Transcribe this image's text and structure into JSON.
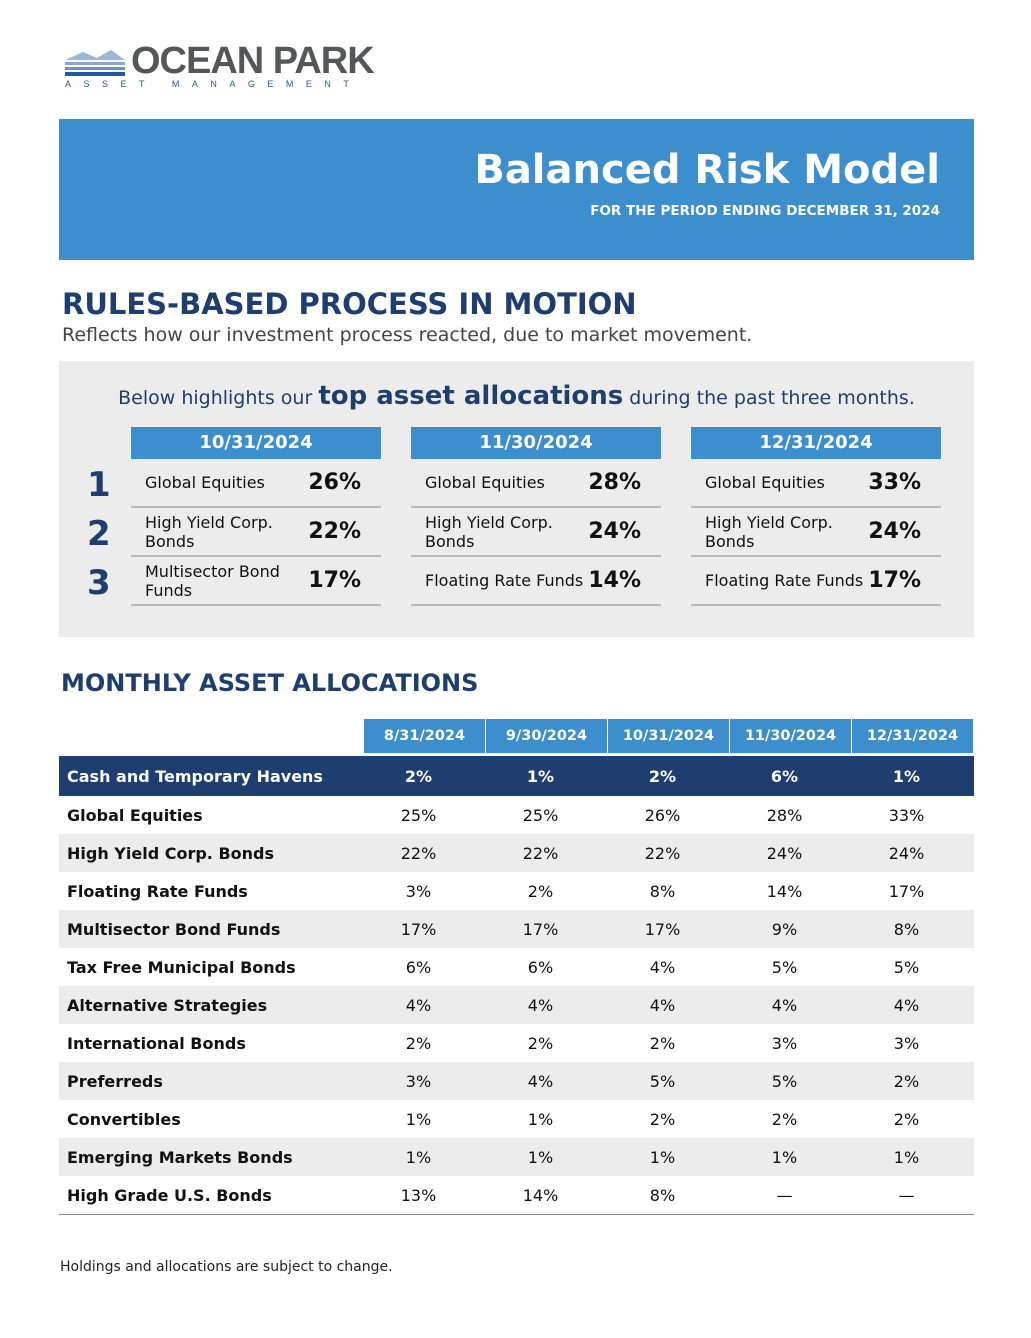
{
  "logo": {
    "name": "OCEAN PARK",
    "tagline": "ASSET MANAGEMENT"
  },
  "banner": {
    "title": "Balanced Risk Model",
    "period": "FOR THE PERIOD ENDING  DECEMBER 31, 2024"
  },
  "process": {
    "title": "RULES-BASED PROCESS IN MOTION",
    "subtitle": "Reflects how our investment process reacted, due to market movement.",
    "intro_pre": "Below highlights our ",
    "intro_bold": "top asset allocations",
    "intro_post": " during the past three months.",
    "ranks": [
      "1",
      "2",
      "3"
    ],
    "columns": [
      {
        "date": "10/31/2024",
        "items": [
          {
            "name": "Global Equities",
            "pct": "26%"
          },
          {
            "name": "High Yield Corp. Bonds",
            "pct": "22%"
          },
          {
            "name": "Multisector Bond Funds",
            "pct": "17%"
          }
        ]
      },
      {
        "date": "11/30/2024",
        "items": [
          {
            "name": "Global Equities",
            "pct": "28%"
          },
          {
            "name": "High Yield Corp. Bonds",
            "pct": "24%"
          },
          {
            "name": "Floating Rate Funds",
            "pct": "14%"
          }
        ]
      },
      {
        "date": "12/31/2024",
        "items": [
          {
            "name": "Global Equities",
            "pct": "33%"
          },
          {
            "name": "High Yield Corp. Bonds",
            "pct": "24%"
          },
          {
            "name": "Floating Rate Funds",
            "pct": "17%"
          }
        ]
      }
    ]
  },
  "monthly": {
    "title": "MONTHLY ASSET ALLOCATIONS",
    "headers": [
      "8/31/2024",
      "9/30/2024",
      "10/31/2024",
      "11/30/2024",
      "12/31/2024"
    ],
    "rows": [
      {
        "label": "Cash and Temporary Havens",
        "values": [
          "2%",
          "1%",
          "2%",
          "6%",
          "1%"
        ]
      },
      {
        "label": "Global Equities",
        "values": [
          "25%",
          "25%",
          "26%",
          "28%",
          "33%"
        ]
      },
      {
        "label": "High Yield Corp. Bonds",
        "values": [
          "22%",
          "22%",
          "22%",
          "24%",
          "24%"
        ]
      },
      {
        "label": "Floating Rate Funds",
        "values": [
          "3%",
          "2%",
          "8%",
          "14%",
          "17%"
        ]
      },
      {
        "label": "Multisector Bond Funds",
        "values": [
          "17%",
          "17%",
          "17%",
          "9%",
          "8%"
        ]
      },
      {
        "label": "Tax Free Municipal Bonds",
        "values": [
          "6%",
          "6%",
          "4%",
          "5%",
          "5%"
        ]
      },
      {
        "label": "Alternative Strategies",
        "values": [
          "4%",
          "4%",
          "4%",
          "4%",
          "4%"
        ]
      },
      {
        "label": "International Bonds",
        "values": [
          "2%",
          "2%",
          "2%",
          "3%",
          "3%"
        ]
      },
      {
        "label": "Preferreds",
        "values": [
          "3%",
          "4%",
          "5%",
          "5%",
          "2%"
        ]
      },
      {
        "label": "Convertibles",
        "values": [
          "1%",
          "1%",
          "2%",
          "2%",
          "2%"
        ]
      },
      {
        "label": "Emerging Markets Bonds",
        "values": [
          "1%",
          "1%",
          "1%",
          "1%",
          "1%"
        ]
      },
      {
        "label": "High Grade U.S. Bonds",
        "values": [
          "13%",
          "14%",
          "8%",
          "—",
          "—"
        ]
      }
    ]
  },
  "footer": "Holdings and allocations are subject to change."
}
